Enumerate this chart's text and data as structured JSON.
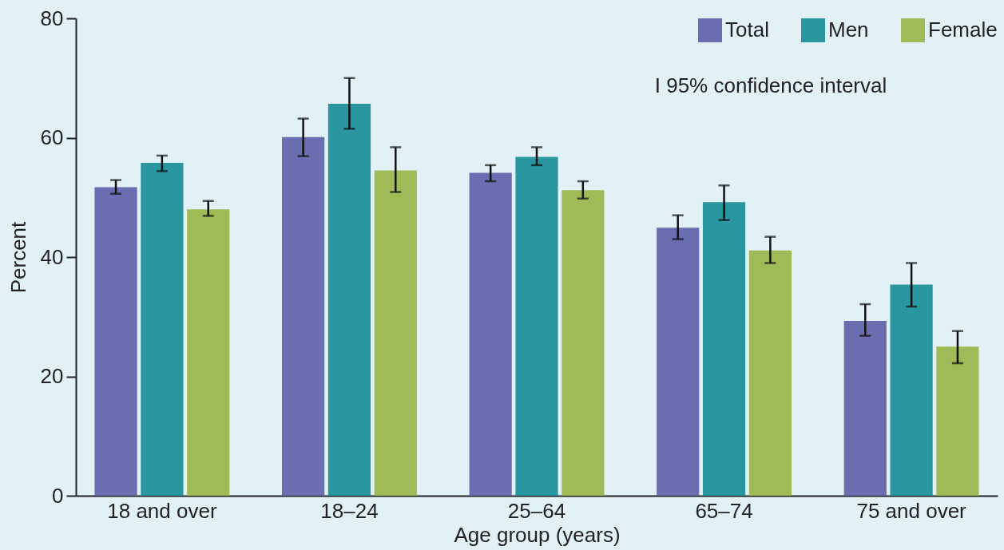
{
  "chart_data": {
    "type": "bar",
    "xlabel": "Age group (years)",
    "ylabel": "Percent",
    "categories": [
      "18 and over",
      "18–24",
      "25–64",
      "65–74",
      "75 and over"
    ],
    "series": [
      {
        "name": "Total",
        "color": "#6a6db0",
        "values": [
          51.7,
          60.1,
          54.1,
          44.9,
          29.3
        ],
        "errors": [
          [
            50.6,
            52.9
          ],
          [
            56.9,
            63.2
          ],
          [
            52.7,
            55.4
          ],
          [
            43.0,
            47.0
          ],
          [
            26.8,
            32.1
          ]
        ]
      },
      {
        "name": "Men",
        "color": "#2a96a0",
        "values": [
          55.8,
          65.7,
          56.8,
          49.2,
          35.4
        ],
        "errors": [
          [
            54.4,
            57.0
          ],
          [
            61.5,
            70.0
          ],
          [
            55.4,
            58.4
          ],
          [
            46.2,
            52.0
          ],
          [
            31.7,
            39.0
          ]
        ]
      },
      {
        "name": "Female",
        "color": "#9ebb57",
        "values": [
          48.0,
          54.5,
          51.2,
          41.1,
          25.0
        ],
        "errors": [
          [
            46.9,
            49.4
          ],
          [
            50.9,
            58.4
          ],
          [
            49.8,
            52.7
          ],
          [
            39.0,
            43.4
          ],
          [
            22.2,
            27.6
          ]
        ]
      }
    ],
    "ylim": [
      0,
      80
    ],
    "yticks": [
      0,
      20,
      40,
      60,
      80
    ],
    "grid": false,
    "legend": "top right",
    "annotations": [
      "I 95% confidence interval"
    ]
  }
}
